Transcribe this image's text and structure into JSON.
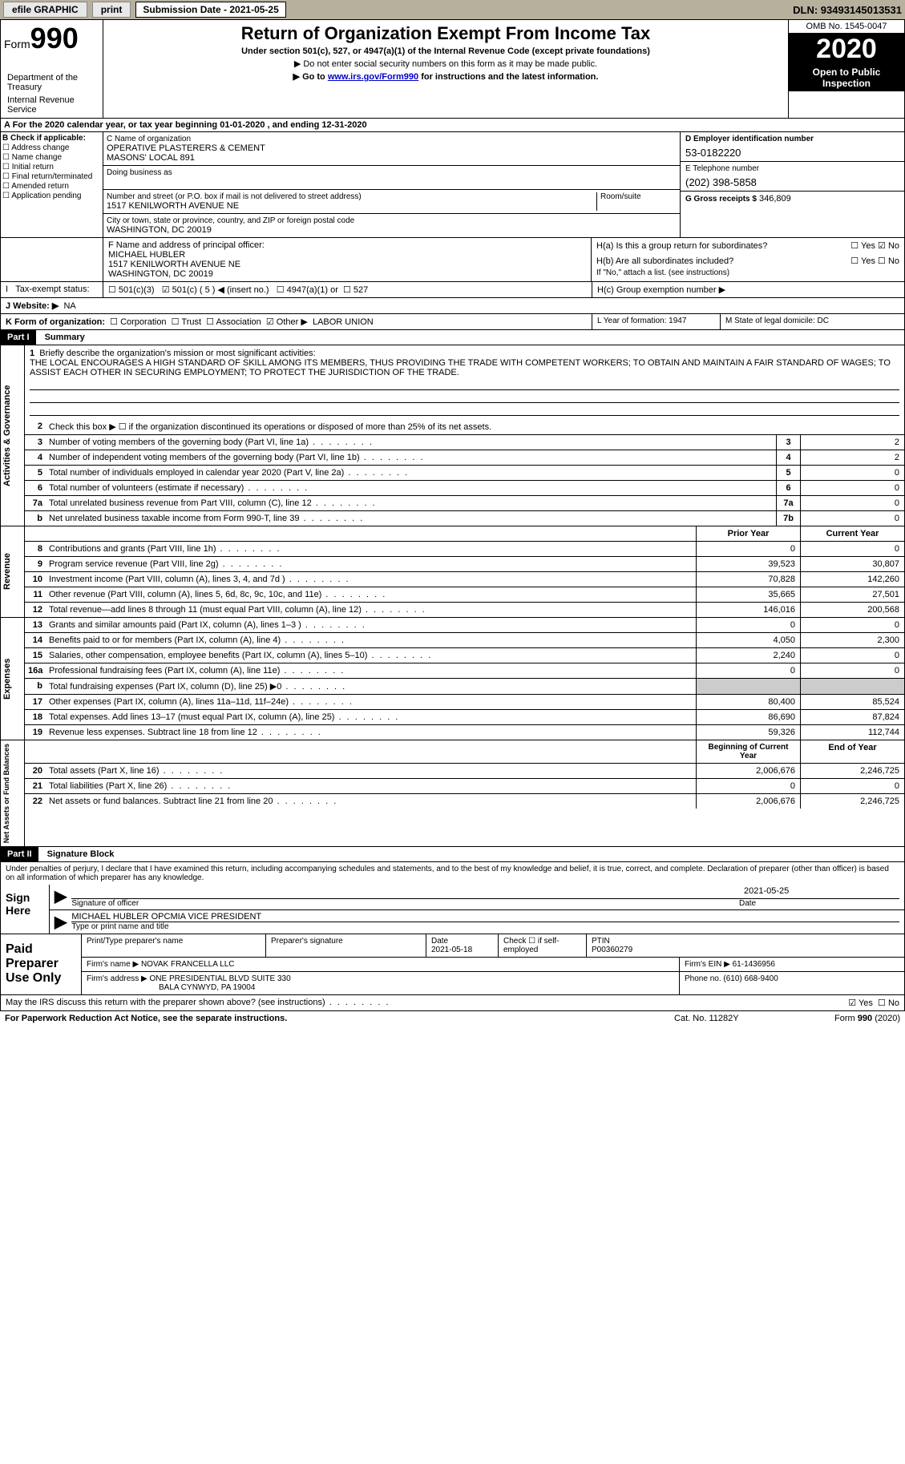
{
  "topbar": {
    "efile": "efile GRAPHIC",
    "print": "print",
    "sub_label": "Submission Date - 2021-05-25",
    "dln": "DLN: 93493145013531"
  },
  "header": {
    "form_word": "Form",
    "form_num": "990",
    "dept1": "Department of the Treasury",
    "dept2": "Internal Revenue Service",
    "title": "Return of Organization Exempt From Income Tax",
    "sub1": "Under section 501(c), 527, or 4947(a)(1) of the Internal Revenue Code (except private foundations)",
    "arrow1": "▶ Do not enter social security numbers on this form as it may be made public.",
    "arrow2_pre": "▶ Go to ",
    "arrow2_link": "www.irs.gov/Form990",
    "arrow2_post": " for instructions and the latest information.",
    "omb": "OMB No. 1545-0047",
    "year": "2020",
    "open1": "Open to Public",
    "open2": "Inspection"
  },
  "period": {
    "a_pre": "A For the 2020 calendar year, or tax year beginning ",
    "begin": "01-01-2020",
    "mid": " , and ending ",
    "end": "12-31-2020"
  },
  "box_b": {
    "hdr": "B Check if applicable:",
    "c1": "Address change",
    "c2": "Name change",
    "c3": "Initial return",
    "c4": "Final return/terminated",
    "c5": "Amended return",
    "c6": "Application pending"
  },
  "box_c": {
    "name_label": "C Name of organization",
    "name1": "OPERATIVE PLASTERERS & CEMENT",
    "name2": "MASONS' LOCAL 891",
    "dba_label": "Doing business as",
    "addr_label": "Number and street (or P.O. box if mail is not delivered to street address)",
    "room_label": "Room/suite",
    "addr": "1517 KENILWORTH AVENUE NE",
    "city_label": "City or town, state or province, country, and ZIP or foreign postal code",
    "city": "WASHINGTON, DC  20019"
  },
  "box_d": {
    "label": "D Employer identification number",
    "val": "53-0182220"
  },
  "box_e": {
    "label": "E Telephone number",
    "val": "(202) 398-5858"
  },
  "box_g": {
    "label": "G Gross receipts $",
    "val": "346,809"
  },
  "box_f": {
    "label": "F  Name and address of principal officer:",
    "name": "MICHAEL HUBLER",
    "addr": "1517 KENILWORTH AVENUE NE",
    "city": "WASHINGTON, DC  20019"
  },
  "box_h": {
    "ha": "H(a)  Is this a group return for subordinates?",
    "hb": "H(b)  Are all subordinates included?",
    "hb_note": "If \"No,\" attach a list. (see instructions)",
    "hc": "H(c)  Group exemption number ▶",
    "yes": "Yes",
    "no": "No"
  },
  "tax_exempt": {
    "label": "Tax-exempt status:",
    "o1": "501(c)(3)",
    "o2": "501(c) ( 5 ) ◀ (insert no.)",
    "o3": "4947(a)(1) or",
    "o4": "527"
  },
  "box_j": {
    "label": "J   Website: ▶",
    "val": "NA"
  },
  "box_k": {
    "label": "K Form of organization:",
    "o1": "Corporation",
    "o2": "Trust",
    "o3": "Association",
    "o4": "Other ▶",
    "other_val": "LABOR UNION",
    "l": "L Year of formation: 1947",
    "m": "M State of legal domicile: DC"
  },
  "part1": {
    "tag": "Part I",
    "title": "Summary",
    "l1_num": "1",
    "l1": "Briefly describe the organization's mission or most significant activities:",
    "mission": "THE LOCAL ENCOURAGES A HIGH STANDARD OF SKILL AMONG ITS MEMBERS, THUS PROVIDING THE TRADE WITH COMPETENT WORKERS; TO OBTAIN AND MAINTAIN A FAIR STANDARD OF WAGES; TO ASSIST EACH OTHER IN SECURING EMPLOYMENT; TO PROTECT THE JURISDICTION OF THE TRADE.",
    "l2_num": "2",
    "l2": "Check this box ▶ ☐  if the organization discontinued its operations or disposed of more than 25% of its net assets.",
    "rows_gov": [
      {
        "n": "3",
        "t": "Number of voting members of the governing body (Part VI, line 1a)",
        "box": "3",
        "v": "2"
      },
      {
        "n": "4",
        "t": "Number of independent voting members of the governing body (Part VI, line 1b)",
        "box": "4",
        "v": "2"
      },
      {
        "n": "5",
        "t": "Total number of individuals employed in calendar year 2020 (Part V, line 2a)",
        "box": "5",
        "v": "0"
      },
      {
        "n": "6",
        "t": "Total number of volunteers (estimate if necessary)",
        "box": "6",
        "v": "0"
      },
      {
        "n": "7a",
        "t": "Total unrelated business revenue from Part VIII, column (C), line 12",
        "box": "7a",
        "v": "0"
      },
      {
        "n": "b",
        "t": "Net unrelated business taxable income from Form 990-T, line 39",
        "box": "7b",
        "v": "0"
      }
    ],
    "col_prior": "Prior Year",
    "col_curr": "Current Year",
    "rows_rev": [
      {
        "n": "8",
        "t": "Contributions and grants (Part VIII, line 1h)",
        "p": "0",
        "c": "0"
      },
      {
        "n": "9",
        "t": "Program service revenue (Part VIII, line 2g)",
        "p": "39,523",
        "c": "30,807"
      },
      {
        "n": "10",
        "t": "Investment income (Part VIII, column (A), lines 3, 4, and 7d )",
        "p": "70,828",
        "c": "142,260"
      },
      {
        "n": "11",
        "t": "Other revenue (Part VIII, column (A), lines 5, 6d, 8c, 9c, 10c, and 11e)",
        "p": "35,665",
        "c": "27,501"
      },
      {
        "n": "12",
        "t": "Total revenue—add lines 8 through 11 (must equal Part VIII, column (A), line 12)",
        "p": "146,016",
        "c": "200,568"
      }
    ],
    "rows_exp": [
      {
        "n": "13",
        "t": "Grants and similar amounts paid (Part IX, column (A), lines 1–3 )",
        "p": "0",
        "c": "0"
      },
      {
        "n": "14",
        "t": "Benefits paid to or for members (Part IX, column (A), line 4)",
        "p": "4,050",
        "c": "2,300"
      },
      {
        "n": "15",
        "t": "Salaries, other compensation, employee benefits (Part IX, column (A), lines 5–10)",
        "p": "2,240",
        "c": "0"
      },
      {
        "n": "16a",
        "t": "Professional fundraising fees (Part IX, column (A), line 11e)",
        "p": "0",
        "c": "0"
      },
      {
        "n": "b",
        "t": "Total fundraising expenses (Part IX, column (D), line 25) ▶0",
        "p": "",
        "c": "",
        "shade": true
      },
      {
        "n": "17",
        "t": "Other expenses (Part IX, column (A), lines 11a–11d, 11f–24e)",
        "p": "80,400",
        "c": "85,524"
      },
      {
        "n": "18",
        "t": "Total expenses. Add lines 13–17 (must equal Part IX, column (A), line 25)",
        "p": "86,690",
        "c": "87,824"
      },
      {
        "n": "19",
        "t": "Revenue less expenses. Subtract line 18 from line 12",
        "p": "59,326",
        "c": "112,744"
      }
    ],
    "col_boy": "Beginning of Current Year",
    "col_eoy": "End of Year",
    "rows_bal": [
      {
        "n": "20",
        "t": "Total assets (Part X, line 16)",
        "p": "2,006,676",
        "c": "2,246,725"
      },
      {
        "n": "21",
        "t": "Total liabilities (Part X, line 26)",
        "p": "0",
        "c": "0"
      },
      {
        "n": "22",
        "t": "Net assets or fund balances. Subtract line 21 from line 20",
        "p": "2,006,676",
        "c": "2,246,725"
      }
    ],
    "vert_gov": "Activities & Governance",
    "vert_rev": "Revenue",
    "vert_exp": "Expenses",
    "vert_bal": "Net Assets or Fund Balances"
  },
  "part2": {
    "tag": "Part II",
    "title": "Signature Block",
    "para": "Under penalties of perjury, I declare that I have examined this return, including accompanying schedules and statements, and to the best of my knowledge and belief, it is true, correct, and complete. Declaration of preparer (other than officer) is based on all information of which preparer has any knowledge.",
    "sign_here": "Sign Here",
    "sig_officer": "Signature of officer",
    "sig_date_label": "Date",
    "sig_date": "2021-05-25",
    "officer_name": "MICHAEL HUBLER OPCMIA VICE PRESIDENT",
    "type_name": "Type or print name and title",
    "paid": "Paid Preparer Use Only",
    "prep_name_label": "Print/Type preparer's name",
    "prep_sig_label": "Preparer's signature",
    "prep_date_label": "Date",
    "prep_date": "2021-05-18",
    "check_if": "Check ☐ if self-employed",
    "ptin_label": "PTIN",
    "ptin": "P00360279",
    "firm_name_label": "Firm's name   ▶",
    "firm_name": "NOVAK FRANCELLA LLC",
    "firm_ein_label": "Firm's EIN ▶",
    "firm_ein": "61-1436956",
    "firm_addr_label": "Firm's address ▶",
    "firm_addr1": "ONE PRESIDENTIAL BLVD SUITE 330",
    "firm_addr2": "BALA CYNWYD, PA  19004",
    "phone_label": "Phone no.",
    "phone": "(610) 668-9400",
    "discuss": "May the IRS discuss this return with the preparer shown above? (see instructions)",
    "yes": "Yes",
    "no": "No"
  },
  "footer": {
    "pra": "For Paperwork Reduction Act Notice, see the separate instructions.",
    "cat": "Cat. No. 11282Y",
    "form": "Form 990 (2020)"
  }
}
